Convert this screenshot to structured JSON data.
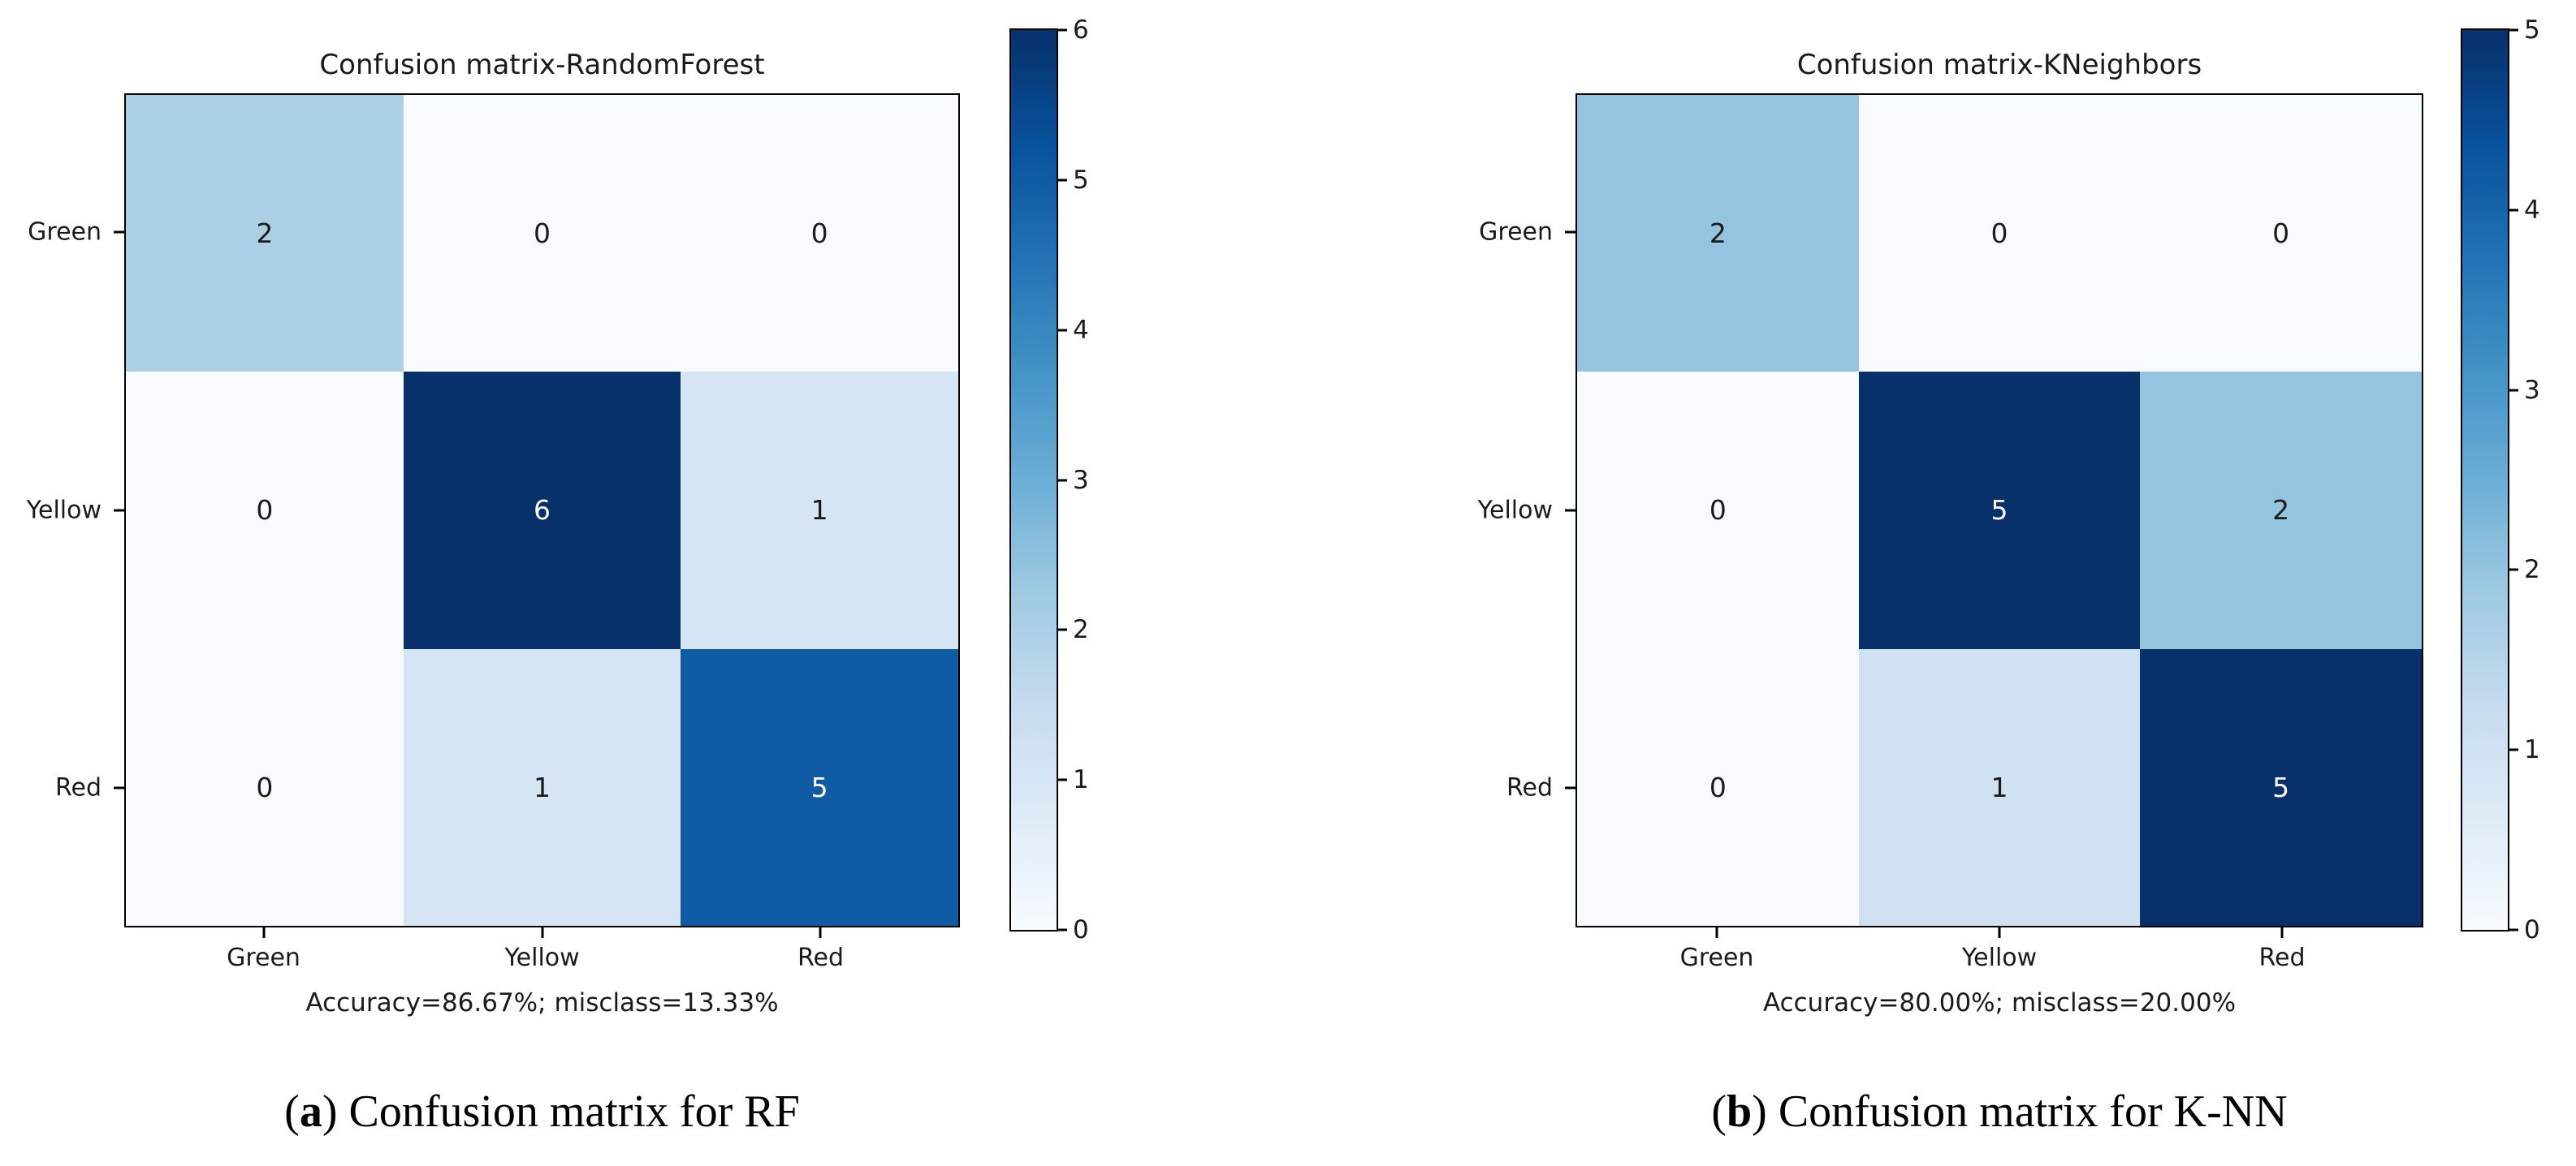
{
  "chart_data": [
    {
      "type": "heatmap",
      "title": "Confusion matrix-RandomForest",
      "x_categories": [
        "Green",
        "Yellow",
        "Red"
      ],
      "y_categories": [
        "Green",
        "Yellow",
        "Red"
      ],
      "values": [
        [
          2,
          0,
          0
        ],
        [
          0,
          6,
          1
        ],
        [
          0,
          1,
          5
        ]
      ],
      "vmin": 0,
      "vmax": 6,
      "colormap": "Blues",
      "colorbar_ticks": [
        "6",
        "5",
        "4",
        "3",
        "2",
        "1",
        "0"
      ],
      "cell_colors": [
        [
          "#abd0e6",
          "#f7fbff",
          "#f7fbff"
        ],
        [
          "#f7fbff",
          "#08306b",
          "#d5e5f4"
        ],
        [
          "#f7fbff",
          "#d5e5f4",
          "#105ca4"
        ]
      ],
      "cell_text_colors": [
        [
          "#1a1a1a",
          "#1a1a1a",
          "#1a1a1a"
        ],
        [
          "#1a1a1a",
          "#ffffff",
          "#1a1a1a"
        ],
        [
          "#1a1a1a",
          "#1a1a1a",
          "#ffffff"
        ]
      ],
      "annotation": "Accuracy=86.67%; misclass=13.33%",
      "caption_prefix": "(",
      "caption_label": "a",
      "caption_suffix": ") Confusion matrix for RF"
    },
    {
      "type": "heatmap",
      "title": "Confusion matrix-KNeighbors",
      "x_categories": [
        "Green",
        "Yellow",
        "Red"
      ],
      "y_categories": [
        "Green",
        "Yellow",
        "Red"
      ],
      "values": [
        [
          2,
          0,
          0
        ],
        [
          0,
          5,
          2
        ],
        [
          0,
          1,
          5
        ]
      ],
      "vmin": 0,
      "vmax": 5,
      "colormap": "Blues",
      "colorbar_ticks": [
        "5",
        "4",
        "3",
        "2",
        "1",
        "0"
      ],
      "cell_colors": [
        [
          "#94c4df",
          "#f7fbff",
          "#f7fbff"
        ],
        [
          "#f7fbff",
          "#08306b",
          "#94c4df"
        ],
        [
          "#f7fbff",
          "#d0e1f2",
          "#08306b"
        ]
      ],
      "cell_text_colors": [
        [
          "#1a1a1a",
          "#1a1a1a",
          "#1a1a1a"
        ],
        [
          "#1a1a1a",
          "#ffffff",
          "#1a1a1a"
        ],
        [
          "#1a1a1a",
          "#1a1a1a",
          "#ffffff"
        ]
      ],
      "annotation": "Accuracy=80.00%; misclass=20.00%",
      "caption_prefix": "(",
      "caption_label": "b",
      "caption_suffix": ") Confusion matrix for K-NN"
    }
  ],
  "colors": {
    "blues_gradient_top_to_bottom": [
      "#08306b",
      "#08519c",
      "#2171b5",
      "#4292c6",
      "#6baed6",
      "#9ecae1",
      "#c6dbef",
      "#deebf7",
      "#f7fbff"
    ],
    "spine": "#000000",
    "text": "#1a1a1a"
  }
}
